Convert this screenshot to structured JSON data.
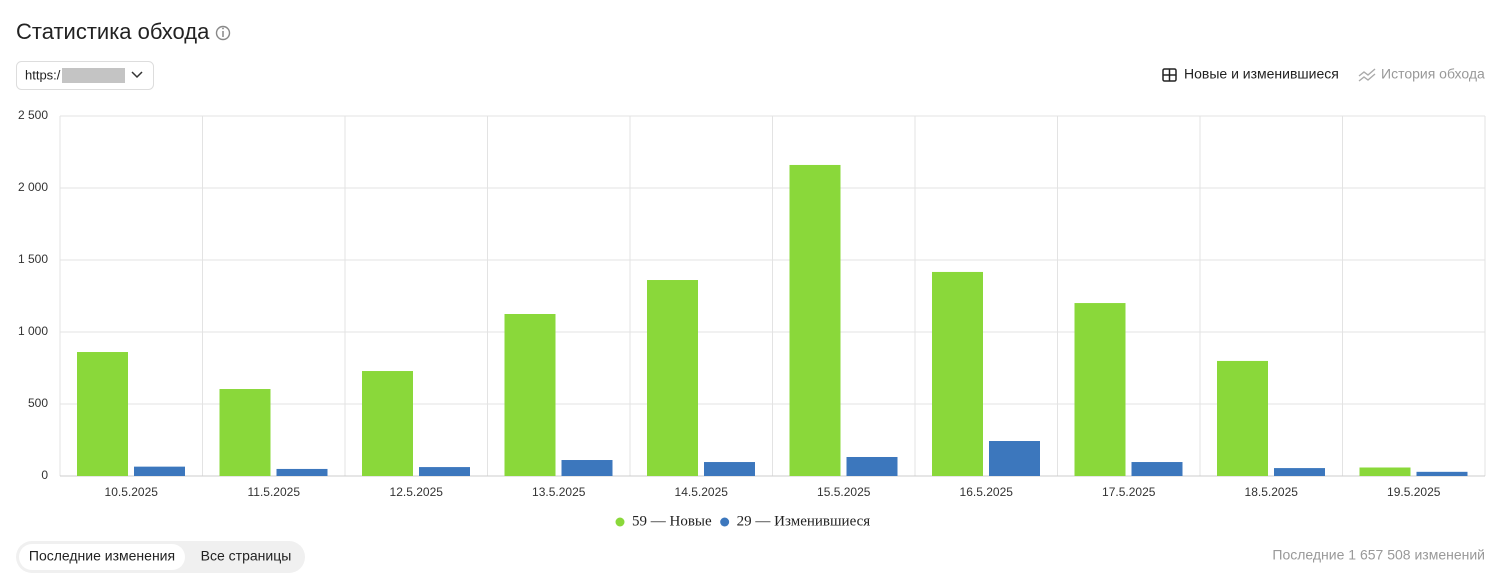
{
  "header": {
    "title": "Статистика обхода",
    "site": "https:/",
    "modes": [
      "Новые и изменившиеся",
      "История обхода"
    ]
  },
  "chart_data": {
    "type": "bar",
    "categories": [
      "10.5.2025",
      "11.5.2025",
      "12.5.2025",
      "13.5.2025",
      "14.5.2025",
      "15.5.2025",
      "16.5.2025",
      "17.5.2025",
      "18.5.2025",
      "19.5.2025"
    ],
    "series": [
      {
        "name": "59 — Новые",
        "color": "#8ad83a",
        "values": [
          861,
          604,
          729,
          1125,
          1361,
          2160,
          1417,
          1201,
          799,
          59
        ]
      },
      {
        "name": "29 — Изменившиеся",
        "color": "#3c77bd",
        "values": [
          65,
          49,
          62,
          111,
          97,
          132,
          243,
          97,
          55,
          29
        ]
      }
    ],
    "ylim": [
      0,
      2500
    ],
    "yticks": [
      0,
      500,
      {
        "value": 1000,
        "label": "1 000"
      },
      {
        "value": 1500,
        "label": "1 500"
      },
      {
        "value": 2000,
        "label": "2 000"
      },
      {
        "value": 2500,
        "label": "2 500"
      }
    ],
    "grid": true
  },
  "footer": {
    "tabs": [
      "Последние изменения",
      "Все страницы"
    ],
    "total": "Последние 1 657 508 изменений"
  }
}
